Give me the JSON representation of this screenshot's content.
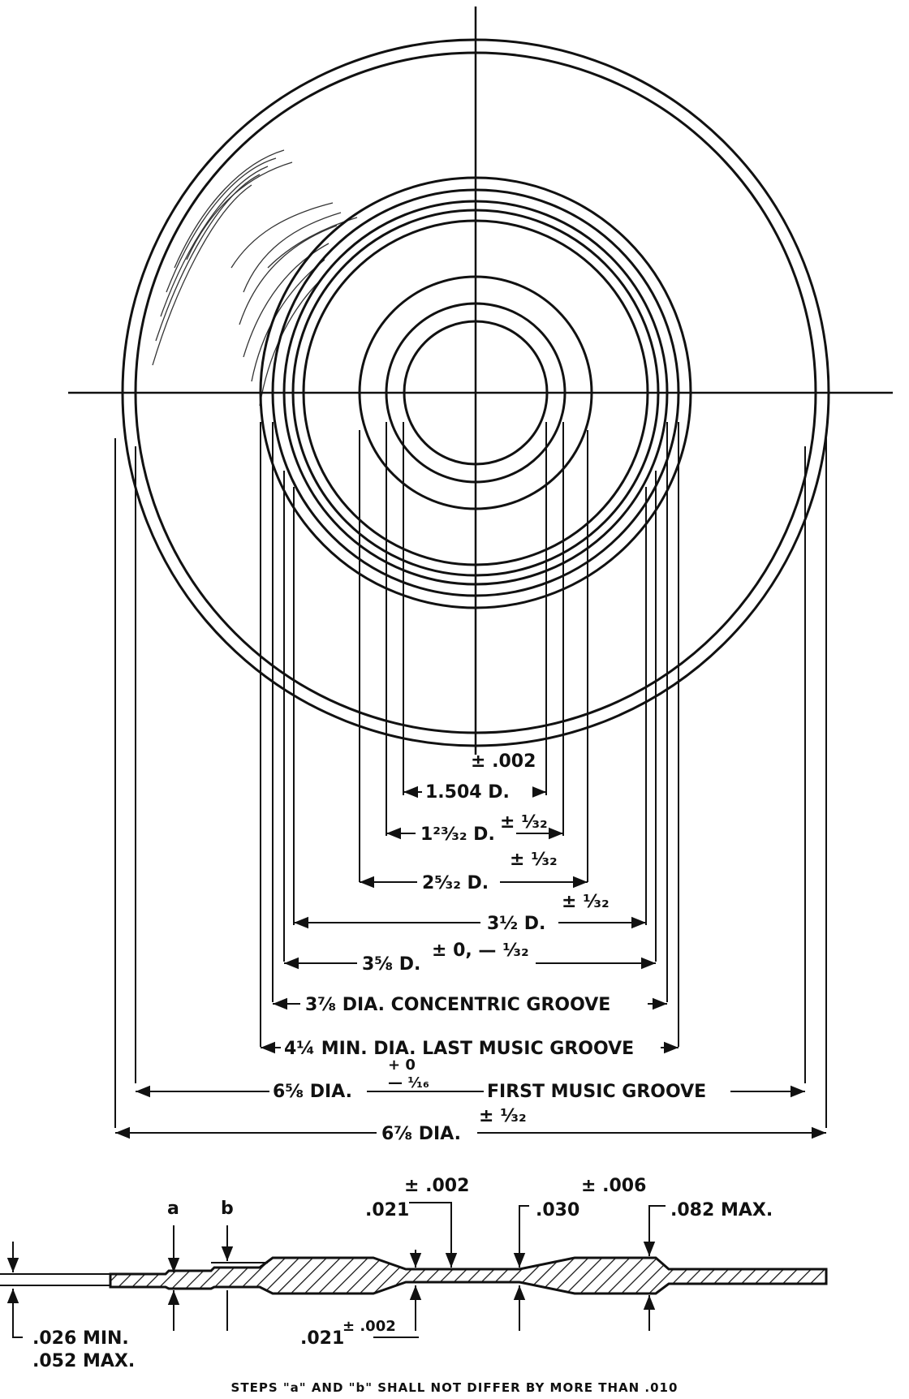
{
  "tolerances": {
    "t_002": "± .002",
    "t_132_a": "± ¹⁄₃₂",
    "t_132_b": "± ¹⁄₃₂",
    "t_132_c": "± ¹⁄₃₂",
    "t_0_132": "± 0, — ¹⁄₃₂",
    "t_plus0": "+ 0",
    "t_minus116": "— ¹⁄₁₆",
    "t_132_d": "± ¹⁄₃₂"
  },
  "dimensions": {
    "d1": "1.504 D.",
    "d2": "1²³⁄₃₂ D.",
    "d3": "2⁵⁄₃₂ D.",
    "d4": "3½ D.",
    "d5": "3⅝ D.",
    "d6": "3⅞ DIA. CONCENTRIC GROOVE",
    "d7": "4¼ MIN. DIA. LAST MUSIC GROOVE",
    "d8": "6⅝ DIA.",
    "d8_note": "FIRST MUSIC GROOVE",
    "d9": "6⅞ DIA."
  },
  "section": {
    "step_a": "a",
    "step_b": "b",
    "v021_top": ".021",
    "tol_021_top": "± .002",
    "v030": ".030",
    "tol_030": "± .006",
    "v082": ".082 MAX.",
    "v026": ".026 MIN.",
    "v052": ".052 MAX.",
    "v021_bot": ".021",
    "tol_021_bot": "± .002"
  },
  "footnote": "STEPS \"a\" AND \"b\" SHALL NOT DIFFER BY MORE THAN .010"
}
